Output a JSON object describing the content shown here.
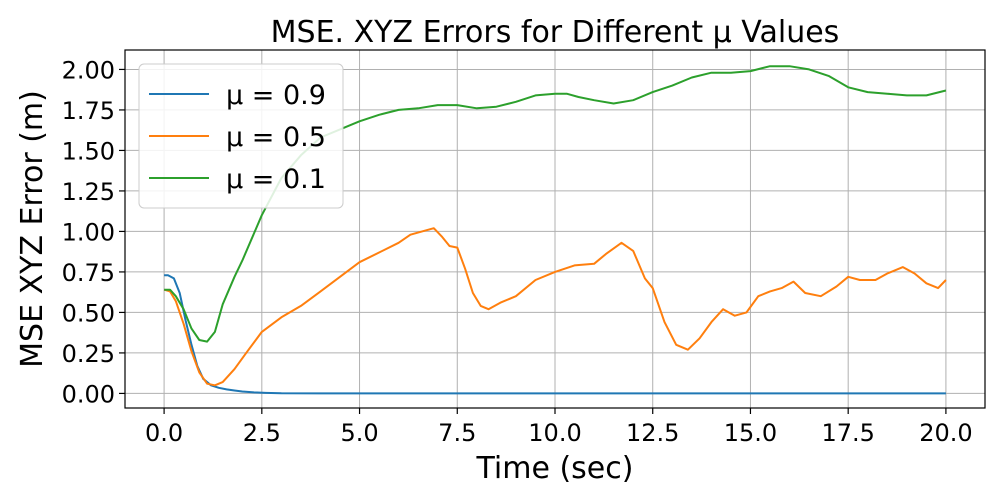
{
  "chart_data": {
    "type": "line",
    "title": "MSE. XYZ Errors for Different μ Values",
    "xlabel": "Time (sec)",
    "ylabel": "MSE XYZ Error (m)",
    "xlim": [
      -1.0,
      21.0
    ],
    "ylim": [
      -0.09,
      2.12
    ],
    "xticks": [
      0.0,
      2.5,
      5.0,
      7.5,
      10.0,
      12.5,
      15.0,
      17.5,
      20.0
    ],
    "xtick_labels": [
      "0.0",
      "2.5",
      "5.0",
      "7.5",
      "10.0",
      "12.5",
      "15.0",
      "17.5",
      "20.0"
    ],
    "yticks": [
      0.0,
      0.25,
      0.5,
      0.75,
      1.0,
      1.25,
      1.5,
      1.75,
      2.0
    ],
    "ytick_labels": [
      "0.00",
      "0.25",
      "0.50",
      "0.75",
      "1.00",
      "1.25",
      "1.50",
      "1.75",
      "2.00"
    ],
    "grid": true,
    "legend_position": "top-left",
    "series": [
      {
        "name": "μ = 0.9",
        "color": "#1f77b4",
        "x": [
          0,
          0.1,
          0.25,
          0.4,
          0.55,
          0.7,
          0.85,
          1.0,
          1.2,
          1.4,
          1.6,
          1.8,
          2.0,
          2.3,
          2.6,
          3.0,
          4.0,
          6.0,
          10.0,
          15.0,
          20.0
        ],
        "y": [
          0.73,
          0.73,
          0.71,
          0.62,
          0.45,
          0.3,
          0.17,
          0.09,
          0.05,
          0.035,
          0.025,
          0.018,
          0.012,
          0.006,
          0.003,
          0.001,
          0.0,
          0.0,
          0.0,
          0.0,
          0.0
        ]
      },
      {
        "name": "μ = 0.5",
        "color": "#ff7f0e",
        "x": [
          0,
          0.15,
          0.3,
          0.5,
          0.7,
          0.9,
          1.1,
          1.3,
          1.5,
          1.8,
          2.1,
          2.5,
          3.0,
          3.5,
          4.0,
          4.5,
          5.0,
          5.5,
          6.0,
          6.3,
          6.6,
          6.9,
          7.1,
          7.3,
          7.5,
          7.7,
          7.9,
          8.1,
          8.3,
          8.6,
          9.0,
          9.5,
          10.0,
          10.5,
          11.0,
          11.3,
          11.7,
          12.0,
          12.3,
          12.5,
          12.8,
          13.1,
          13.4,
          13.7,
          14.0,
          14.3,
          14.6,
          14.9,
          15.2,
          15.5,
          15.8,
          16.1,
          16.4,
          16.8,
          17.2,
          17.5,
          17.8,
          18.2,
          18.5,
          18.9,
          19.2,
          19.5,
          19.8,
          20.0
        ],
        "y": [
          0.64,
          0.63,
          0.57,
          0.43,
          0.26,
          0.13,
          0.06,
          0.05,
          0.07,
          0.15,
          0.25,
          0.38,
          0.47,
          0.54,
          0.63,
          0.72,
          0.81,
          0.87,
          0.93,
          0.98,
          1.0,
          1.02,
          0.97,
          0.91,
          0.9,
          0.77,
          0.62,
          0.54,
          0.52,
          0.56,
          0.6,
          0.7,
          0.75,
          0.79,
          0.8,
          0.86,
          0.93,
          0.88,
          0.71,
          0.65,
          0.44,
          0.3,
          0.27,
          0.34,
          0.44,
          0.52,
          0.48,
          0.5,
          0.6,
          0.63,
          0.65,
          0.69,
          0.62,
          0.6,
          0.66,
          0.72,
          0.7,
          0.7,
          0.74,
          0.78,
          0.74,
          0.68,
          0.65,
          0.7
        ]
      },
      {
        "name": "μ = 0.1",
        "color": "#2ca02c",
        "x": [
          0,
          0.15,
          0.3,
          0.5,
          0.7,
          0.9,
          1.1,
          1.3,
          1.5,
          1.8,
          2.0,
          2.5,
          3.0,
          3.5,
          4.0,
          4.5,
          5.0,
          5.5,
          6.0,
          6.5,
          7.0,
          7.5,
          8.0,
          8.5,
          9.0,
          9.5,
          10.0,
          10.3,
          10.6,
          11.0,
          11.5,
          12.0,
          12.5,
          13.0,
          13.5,
          14.0,
          14.5,
          15.0,
          15.5,
          16.0,
          16.5,
          17.0,
          17.5,
          18.0,
          18.5,
          19.0,
          19.5,
          20.0
        ],
        "y": [
          0.64,
          0.64,
          0.6,
          0.52,
          0.4,
          0.33,
          0.32,
          0.38,
          0.55,
          0.72,
          0.82,
          1.1,
          1.33,
          1.47,
          1.58,
          1.63,
          1.68,
          1.72,
          1.75,
          1.76,
          1.78,
          1.78,
          1.76,
          1.77,
          1.8,
          1.84,
          1.85,
          1.85,
          1.83,
          1.81,
          1.79,
          1.81,
          1.86,
          1.9,
          1.95,
          1.98,
          1.98,
          1.99,
          2.02,
          2.02,
          2.0,
          1.96,
          1.89,
          1.86,
          1.85,
          1.84,
          1.84,
          1.87
        ]
      }
    ]
  }
}
